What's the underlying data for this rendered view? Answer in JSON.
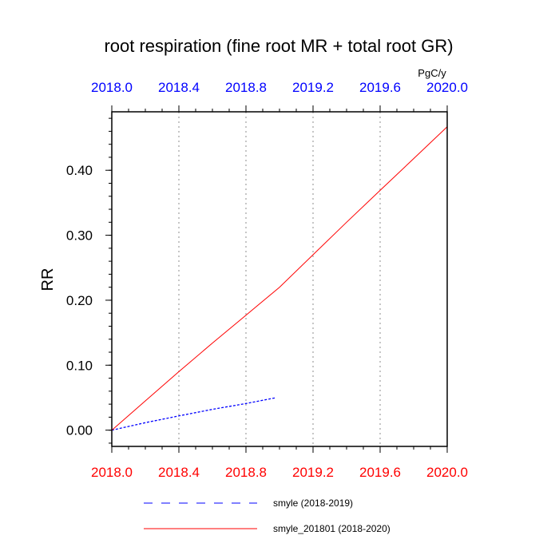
{
  "chart_data": {
    "type": "line",
    "title": "root respiration (fine root MR + total root GR)",
    "units": "PgC/y",
    "ylabel": "RR",
    "xlim": [
      2018.0,
      2020.0
    ],
    "ylim": [
      -0.025,
      0.49
    ],
    "x_ticks": [
      "2018.0",
      "2018.4",
      "2018.8",
      "2019.2",
      "2019.6",
      "2020.0"
    ],
    "x_tick_values": [
      2018.0,
      2018.4,
      2018.8,
      2019.2,
      2019.6,
      2020.0
    ],
    "y_ticks": [
      "0.00",
      "0.10",
      "0.20",
      "0.30",
      "0.40"
    ],
    "y_tick_values": [
      0.0,
      0.1,
      0.2,
      0.3,
      0.4
    ],
    "grid": "vertical dotted at major x ticks",
    "top_axis_color": "#0000ff",
    "bottom_axis_color": "#ff0000",
    "series": [
      {
        "name": "smyle (2018-2019)",
        "color": "#0000ff",
        "style": "dashed",
        "x": [
          2018.0,
          2018.2,
          2018.4,
          2018.6,
          2018.8,
          2018.98
        ],
        "y": [
          0.0,
          0.0115,
          0.022,
          0.032,
          0.041,
          0.05
        ]
      },
      {
        "name": "smyle_201801 (2018-2020)",
        "color": "#ff0000",
        "style": "solid",
        "x": [
          2018.0,
          2018.2,
          2018.4,
          2018.6,
          2018.8,
          2019.0,
          2019.2,
          2019.4,
          2019.6,
          2019.8,
          2020.0
        ],
        "y": [
          0.0,
          0.045,
          0.09,
          0.134,
          0.177,
          0.22,
          0.27,
          0.32,
          0.369,
          0.418,
          0.467
        ]
      }
    ],
    "legend_position": "bottom"
  }
}
